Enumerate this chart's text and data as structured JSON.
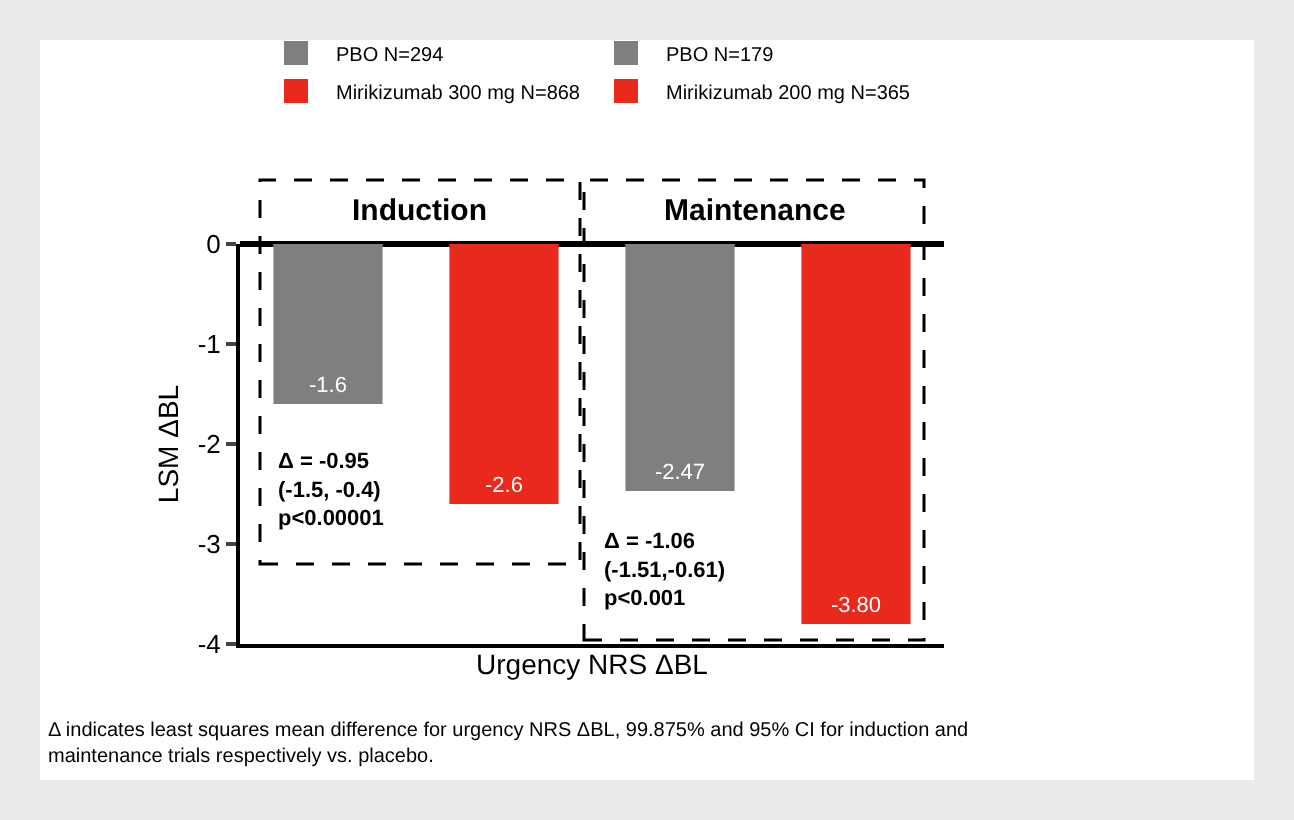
{
  "chart_data": {
    "type": "bar",
    "categories": [
      null,
      null,
      null,
      null
    ],
    "series": [
      {
        "name": "PBO N=294",
        "color": "#7f7f7f",
        "values": [
          -1.6,
          null,
          null,
          null
        ],
        "value_labels": [
          "-1.6",
          null,
          null,
          null
        ]
      },
      {
        "name": "PBO N=179",
        "color": "#7f7f7f",
        "values": [
          null,
          null,
          -2.47,
          null
        ],
        "value_labels": [
          null,
          null,
          "-2.47",
          null
        ]
      },
      {
        "name": "Mirikizumab 300 mg N=868",
        "color": "#e8291c",
        "values": [
          null,
          -2.6,
          null,
          null
        ],
        "value_labels": [
          null,
          "-2.6",
          null,
          null
        ]
      },
      {
        "name": "Mirikizumab 200 mg N=365",
        "color": "#e8291c",
        "values": [
          null,
          null,
          null,
          -3.8
        ],
        "value_labels": [
          null,
          null,
          null,
          "-3.80"
        ]
      }
    ],
    "xlabel": "Urgency NRS ΔBL",
    "ylabel": "LSM ΔBL",
    "ylim": [
      -4,
      0
    ],
    "yticks": [
      0,
      -1,
      -2,
      -3,
      -4
    ],
    "annotations": [
      "Induction",
      "Maintenance",
      "Δ = -0.95\n(-1.5, -0.4)\np<0.00001",
      "Δ = -1.06\n(-1.51,-0.61)\np<0.001",
      "Δ indicates least squares mean difference for urgency NRS ΔBL, 99.875% and 95% CI for induction and maintenance trials respectively vs. placebo."
    ],
    "tick_labels": "y",
    "legend": "top"
  }
}
